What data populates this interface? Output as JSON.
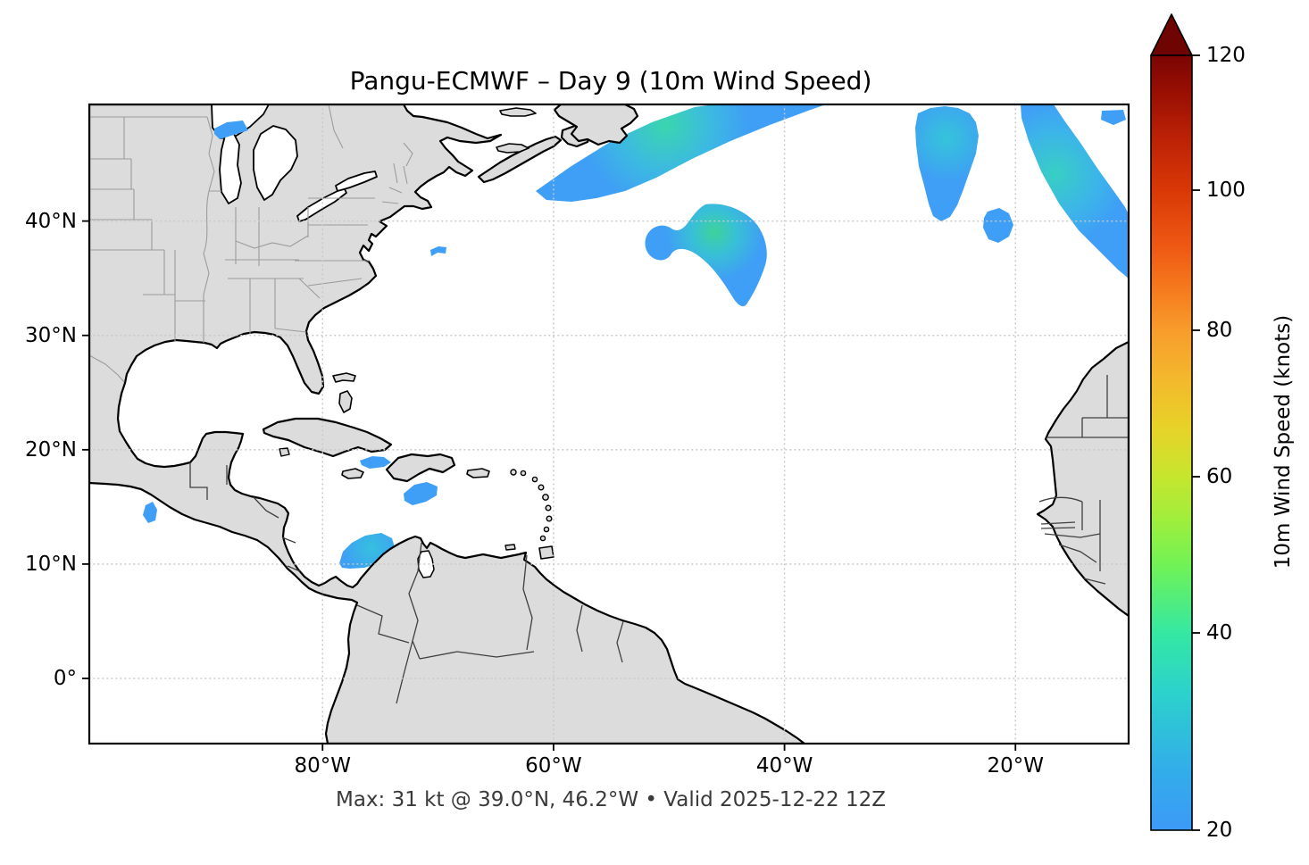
{
  "title": "Pangu-ECMWF – Day 9 (10m Wind Speed)",
  "caption": "Max: 31 kt @ 39.0°N, 46.2°W • Valid 2025-12-22 12Z",
  "x_axis": {
    "ticks": [
      {
        "label": "80°W",
        "lon": -80
      },
      {
        "label": "60°W",
        "lon": -60
      },
      {
        "label": "40°W",
        "lon": -40
      },
      {
        "label": "20°W",
        "lon": -20
      }
    ]
  },
  "y_axis": {
    "ticks": [
      {
        "label": "40°N",
        "lat": 40
      },
      {
        "label": "30°N",
        "lat": 30
      },
      {
        "label": "20°N",
        "lat": 20
      },
      {
        "label": "10°N",
        "lat": 10
      },
      {
        "label": "0°",
        "lat": 0
      }
    ]
  },
  "extent": {
    "lon_min": -100.2,
    "lon_max": -10.2,
    "lat_min": -5.7,
    "lat_max": 50.2
  },
  "colorbar": {
    "label": "10m Wind Speed (knots)",
    "min": 20,
    "max": 120,
    "extend": "max",
    "ticks": [
      {
        "value": "20",
        "pos": 0.0
      },
      {
        "value": "40",
        "pos": 0.2546
      },
      {
        "value": "60",
        "pos": 0.4562
      },
      {
        "value": "80",
        "pos": 0.6452
      },
      {
        "value": "100",
        "pos": 0.826
      },
      {
        "value": "120",
        "pos": 1.0
      }
    ]
  },
  "colors": {
    "land": "#dcdcdc",
    "ocean": "#ffffff",
    "coastline": "#000000",
    "state_borders": "#9c9c9c",
    "country_borders": "#3f3f3f",
    "gridlines": "#c9c9c9",
    "wind_low": "#3f9ef6",
    "wind_mid": "#38cfc3",
    "wind_core": "#3ed29b",
    "cbar_bottom": "#3c9af8",
    "cbar_top": "#7a0403"
  },
  "chart_data": {
    "type": "heatmap",
    "model": "Pangu-ECMWF",
    "forecast_day": 9,
    "variable": "10m Wind Speed",
    "units": "knots",
    "valid_time": "2025-12-22 12Z",
    "title": "Pangu-ECMWF – Day 9 (10m Wind Speed)",
    "annotation": "Max: 31 kt @ 39.0°N, 46.2°W • Valid 2025-12-22 12Z",
    "map_extent_lon": [
      -100.2,
      -10.2
    ],
    "map_extent_lat": [
      -5.7,
      50.2
    ],
    "colorbar_range_kt": [
      20,
      120
    ],
    "colorbar_ticks_kt": [
      20,
      40,
      60,
      80,
      100,
      120
    ],
    "max": {
      "value_kt": 31,
      "lat": 39.0,
      "lon": -46.2
    },
    "shading_threshold_kt": 20,
    "grid": "dotted, 10-degree latitude / 20-degree longitude",
    "legend_position": "right vertical colorbar with extend-max arrow",
    "wind_features": [
      {
        "name": "newfoundland-band",
        "desc": "SW–NE band south and east of Newfoundland",
        "from_latlon": [
          42.0,
          -61.5
        ],
        "to_latlon": [
          50.2,
          -36.8
        ],
        "peak_kt": 28
      },
      {
        "name": "central-atlantic-hook",
        "desc": "Comma/hook-shaped maximum (strongest winds on map)",
        "center_latlon": [
          39.0,
          -46.2
        ],
        "peak_kt": 31
      },
      {
        "name": "ne-atlantic-oval",
        "desc": "Elongated vertical patch",
        "center_latlon": [
          45.3,
          -25.9
        ],
        "peak_kt": 24
      },
      {
        "name": "ne-atlantic-round",
        "desc": "Small round patch",
        "center_latlon": [
          39.7,
          -21.5
        ],
        "peak_kt": 22
      },
      {
        "name": "ne-atlantic-crescent",
        "desc": "Large crescent reaching east map edge",
        "center_latlon": [
          44.5,
          -15.9
        ],
        "peak_kt": 27
      },
      {
        "name": "top-right-corner-patch",
        "desc": "Small patch near north-east corner",
        "center_latlon": [
          49.2,
          -11.6
        ],
        "peak_kt": 21
      },
      {
        "name": "windward-passage-patch",
        "desc": "Patch south of eastern Cuba",
        "center_latlon": [
          19.0,
          -75.4
        ],
        "peak_kt": 22
      },
      {
        "name": "central-caribbean-patch",
        "desc": "Patch south of Hispaniola",
        "center_latlon": [
          16.2,
          -71.5
        ],
        "peak_kt": 23
      },
      {
        "name": "colombia-coast-patch",
        "desc": "Patch off Colombian Caribbean coast",
        "center_latlon": [
          11.2,
          -76.1
        ],
        "peak_kt": 24
      },
      {
        "name": "pacific-guatemala-spot",
        "desc": "Small spot in eastern Pacific",
        "center_latlon": [
          14.5,
          -94.9
        ],
        "peak_kt": 21
      },
      {
        "name": "lake-superior-spot",
        "desc": "Small spot over Lake Superior",
        "center_latlon": [
          47.8,
          -88.6
        ],
        "peak_kt": 21
      },
      {
        "name": "mid-atlantic-offshore-spot",
        "desc": "Tiny spot offshore of Virginia",
        "center_latlon": [
          37.4,
          -70.0
        ],
        "peak_kt": 21
      }
    ]
  }
}
